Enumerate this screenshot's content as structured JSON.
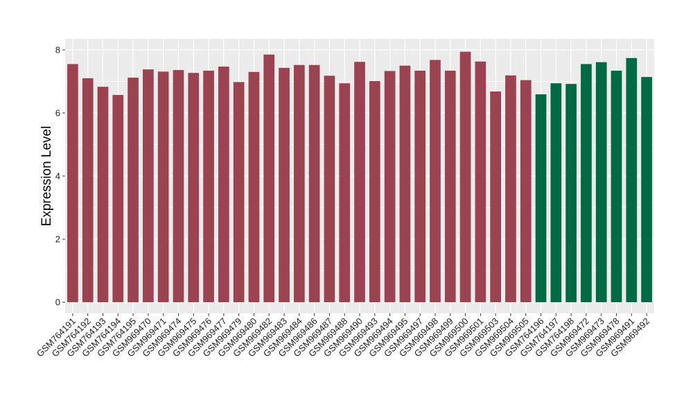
{
  "chart_data": {
    "type": "bar",
    "title": "",
    "xlabel": "",
    "ylabel": "Expression Level",
    "ylim": [
      -0.35,
      8.35
    ],
    "yticks": [
      0,
      2,
      4,
      6,
      8
    ],
    "grid": true,
    "legend": "none",
    "colors": {
      "group_a": "#9b4350",
      "group_b": "#006a45",
      "panel_bg": "#ebebeb",
      "grid": "#ffffff"
    },
    "categories": [
      "GSM764191",
      "GSM764192",
      "GSM764193",
      "GSM764194",
      "GSM764195",
      "GSM969470",
      "GSM969471",
      "GSM969474",
      "GSM969475",
      "GSM969476",
      "GSM969477",
      "GSM969479",
      "GSM969480",
      "GSM969482",
      "GSM969483",
      "GSM969484",
      "GSM969486",
      "GSM969487",
      "GSM969488",
      "GSM969490",
      "GSM969493",
      "GSM969494",
      "GSM969495",
      "GSM969497",
      "GSM969498",
      "GSM969499",
      "GSM969500",
      "GSM969501",
      "GSM969503",
      "GSM969504",
      "GSM969505",
      "GSM764196",
      "GSM764197",
      "GSM764198",
      "GSM969472",
      "GSM969473",
      "GSM969478",
      "GSM969491",
      "GSM969492"
    ],
    "values": [
      7.55,
      7.1,
      6.83,
      6.57,
      7.12,
      7.38,
      7.31,
      7.36,
      7.27,
      7.34,
      7.47,
      6.98,
      7.3,
      7.85,
      7.43,
      7.52,
      7.52,
      7.18,
      6.94,
      7.62,
      7.01,
      7.33,
      7.5,
      7.34,
      7.68,
      7.34,
      7.94,
      7.63,
      6.68,
      7.19,
      7.04,
      6.59,
      6.94,
      6.92,
      7.55,
      7.61,
      7.34,
      7.74,
      7.14
    ],
    "groups": [
      "a",
      "a",
      "a",
      "a",
      "a",
      "a",
      "a",
      "a",
      "a",
      "a",
      "a",
      "a",
      "a",
      "a",
      "a",
      "a",
      "a",
      "a",
      "a",
      "a",
      "a",
      "a",
      "a",
      "a",
      "a",
      "a",
      "a",
      "a",
      "a",
      "a",
      "a",
      "b",
      "b",
      "b",
      "b",
      "b",
      "b",
      "b",
      "b"
    ]
  }
}
